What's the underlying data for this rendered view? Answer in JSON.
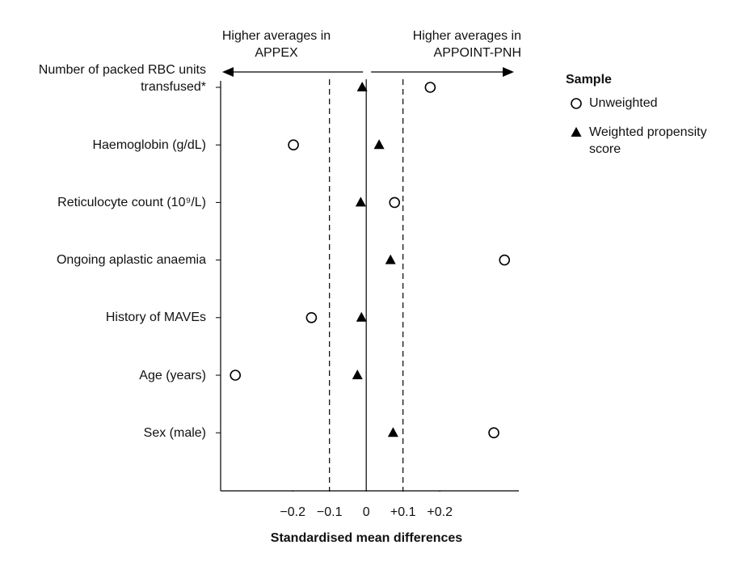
{
  "chart_data": {
    "type": "scatter",
    "orientation": "horizontal",
    "categories": [
      "Number of packed RBC units transfused*",
      "Haemoglobin (g/dL)",
      "Reticulocyte count (10⁹/L)",
      "Ongoing aplastic anaemia",
      "History of MAVEs",
      "Age (years)",
      "Sex (male)"
    ],
    "series": [
      {
        "name": "Unweighted",
        "color": "#000000",
        "marker": "circle",
        "values": [
          0.174,
          -0.198,
          0.077,
          0.376,
          -0.149,
          -0.356,
          0.347
        ]
      },
      {
        "name": "Weighted propensity score",
        "color": "#000000",
        "marker": "triangle",
        "values": [
          -0.011,
          0.035,
          -0.015,
          0.066,
          -0.013,
          -0.024,
          0.073
        ]
      }
    ],
    "xlim": [
      -0.396,
      0.415
    ],
    "xticks": [
      {
        "value": -0.2,
        "label": "−0.2"
      },
      {
        "value": -0.1,
        "label": "−0.1"
      },
      0,
      {
        "value": 0.1,
        "label": "+0.1"
      },
      {
        "value": 0.2,
        "label": "+0.2"
      }
    ],
    "reference_lines": [
      {
        "value": -0.1,
        "style": "dashed"
      },
      {
        "value": 0,
        "style": "solid"
      },
      {
        "value": 0.1,
        "style": "dashed"
      }
    ],
    "xlabel": "Standardised mean differences",
    "annotations": [
      "Higher averages in APPEX",
      "Higher averages in APPOINT-PNH"
    ],
    "legend_title": "Sample",
    "legend_position": "right"
  }
}
